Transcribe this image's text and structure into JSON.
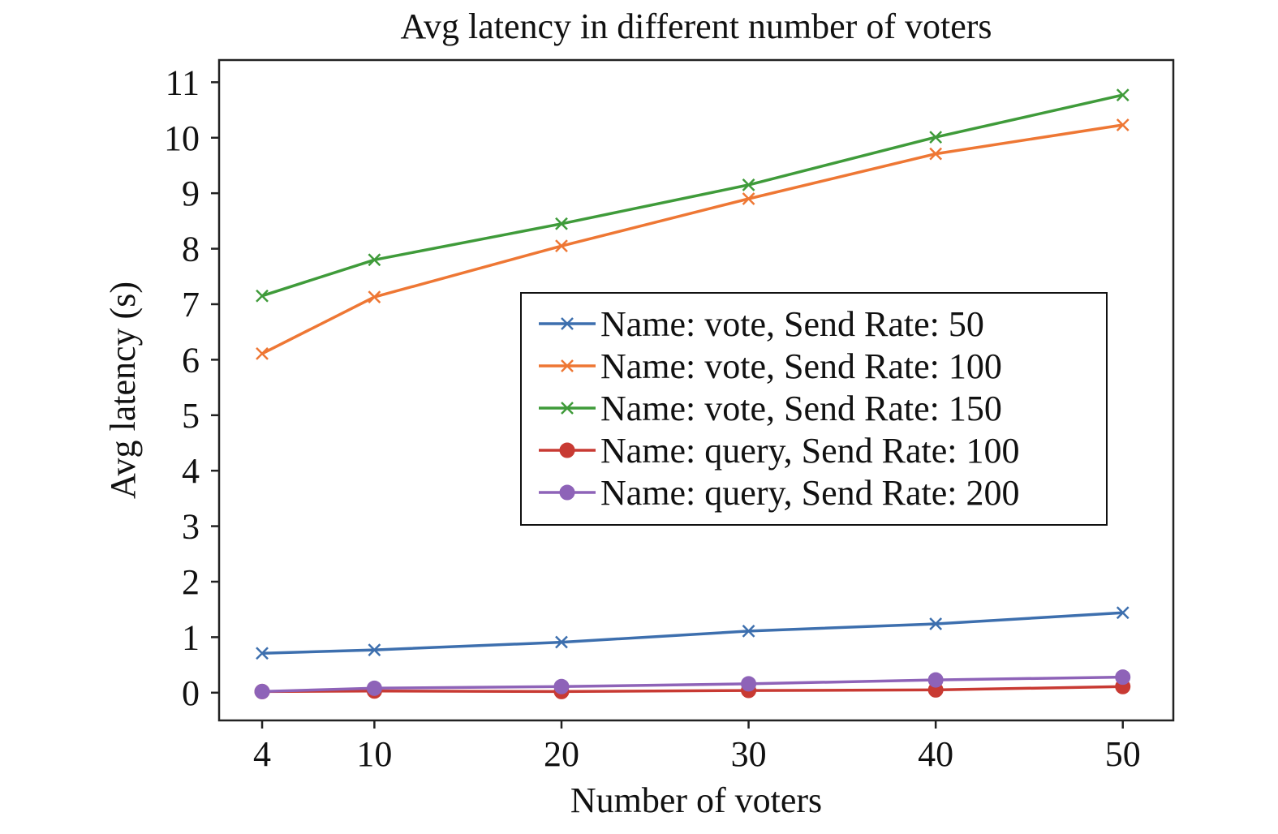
{
  "chart_data": {
    "type": "line",
    "title": "Avg latency in different number of voters",
    "xlabel": "Number of voters",
    "ylabel": "Avg latency (s)",
    "x": [
      4,
      10,
      20,
      30,
      40,
      50
    ],
    "x_ticks": [
      "4",
      "10",
      "20",
      "30",
      "40",
      "50"
    ],
    "xlim": [
      1.7,
      52.7
    ],
    "ylim": [
      -0.5,
      11.4
    ],
    "y_ticks": [
      "0",
      "1",
      "2",
      "3",
      "4",
      "5",
      "6",
      "7",
      "8",
      "9",
      "10",
      "11"
    ],
    "grid": false,
    "legend_position": "center-right",
    "series": [
      {
        "name": "Name: vote, Send Rate: 50",
        "color": "#3d6fae",
        "marker": "x",
        "values": [
          0.71,
          0.77,
          0.91,
          1.11,
          1.24,
          1.44
        ]
      },
      {
        "name": "Name: vote, Send Rate: 100",
        "color": "#ee7734",
        "marker": "x",
        "values": [
          6.11,
          7.13,
          8.05,
          8.9,
          9.71,
          10.23
        ]
      },
      {
        "name": "Name: vote, Send Rate: 150",
        "color": "#3f9b3a",
        "marker": "x",
        "values": [
          7.15,
          7.8,
          8.45,
          9.15,
          10.01,
          10.77
        ]
      },
      {
        "name": "Name: query, Send Rate: 100",
        "color": "#c83a33",
        "marker": "circle",
        "values": [
          0.02,
          0.03,
          0.02,
          0.04,
          0.05,
          0.11
        ]
      },
      {
        "name": "Name: query, Send Rate: 200",
        "color": "#8e63b8",
        "marker": "circle",
        "values": [
          0.02,
          0.08,
          0.11,
          0.16,
          0.23,
          0.28
        ]
      }
    ]
  }
}
